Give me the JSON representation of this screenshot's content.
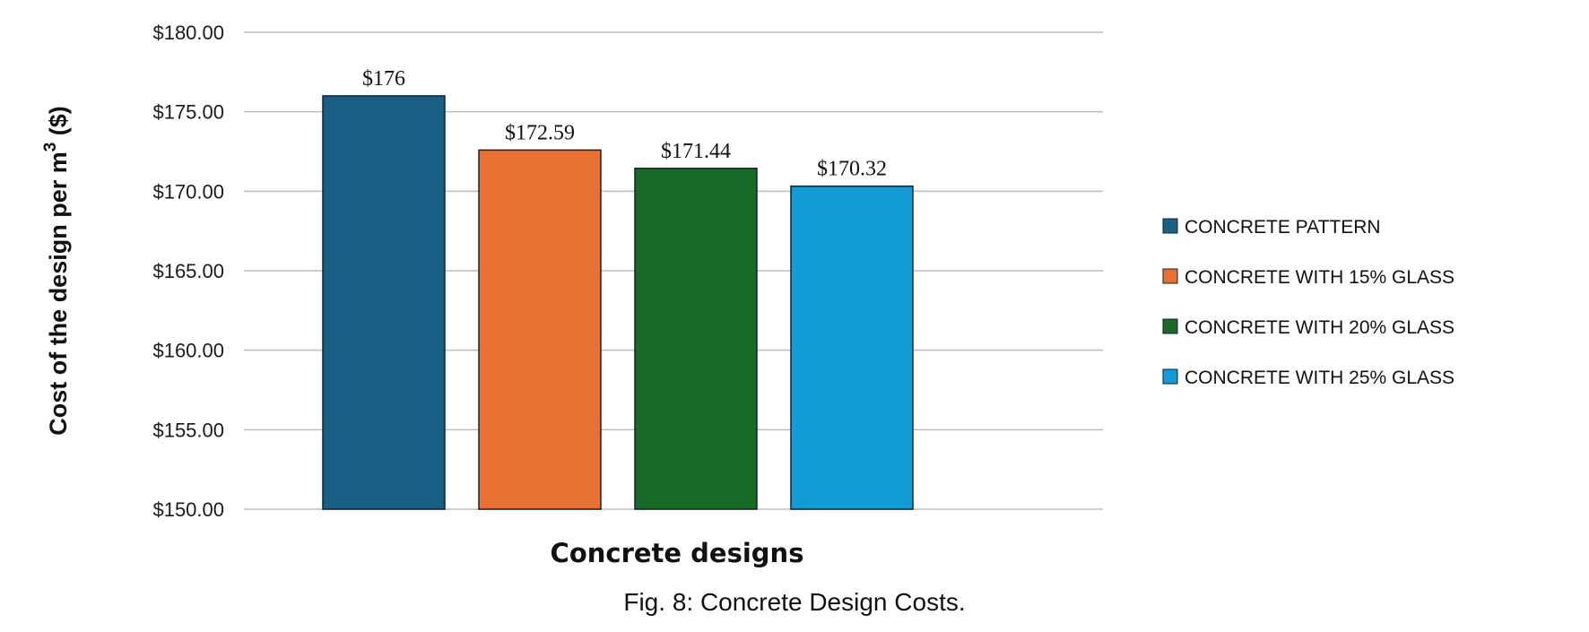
{
  "chart_data": {
    "type": "bar",
    "categories": [
      "CONCRETE PATTERN",
      "CONCRETE WITH 15% GLASS",
      "CONCRETE WITH 20% GLASS",
      "CONCRETE WITH 25% GLASS"
    ],
    "values": [
      176,
      172.59,
      171.44,
      170.32
    ],
    "data_labels": [
      "$176",
      "$172.59",
      "$171.44",
      "$170.32"
    ],
    "colors": [
      "#1b5f84",
      "#e87033",
      "#1a6a27",
      "#139bd6"
    ],
    "xlabel": "Concrete designs",
    "ylabel_prefix": "Cost of the design per m",
    "ylabel_superscript": "3",
    "ylabel_suffix": " ($)",
    "ylim": [
      150,
      180
    ],
    "yticks": [
      150,
      155,
      160,
      165,
      170,
      175,
      180
    ],
    "ytick_labels": [
      "$150.00",
      "$155.00",
      "$160.00",
      "$165.00",
      "$170.00",
      "$175.00",
      "$180.00"
    ],
    "grid": true,
    "legend_position": "right"
  },
  "caption": "Fig. 8: Concrete Design Costs."
}
